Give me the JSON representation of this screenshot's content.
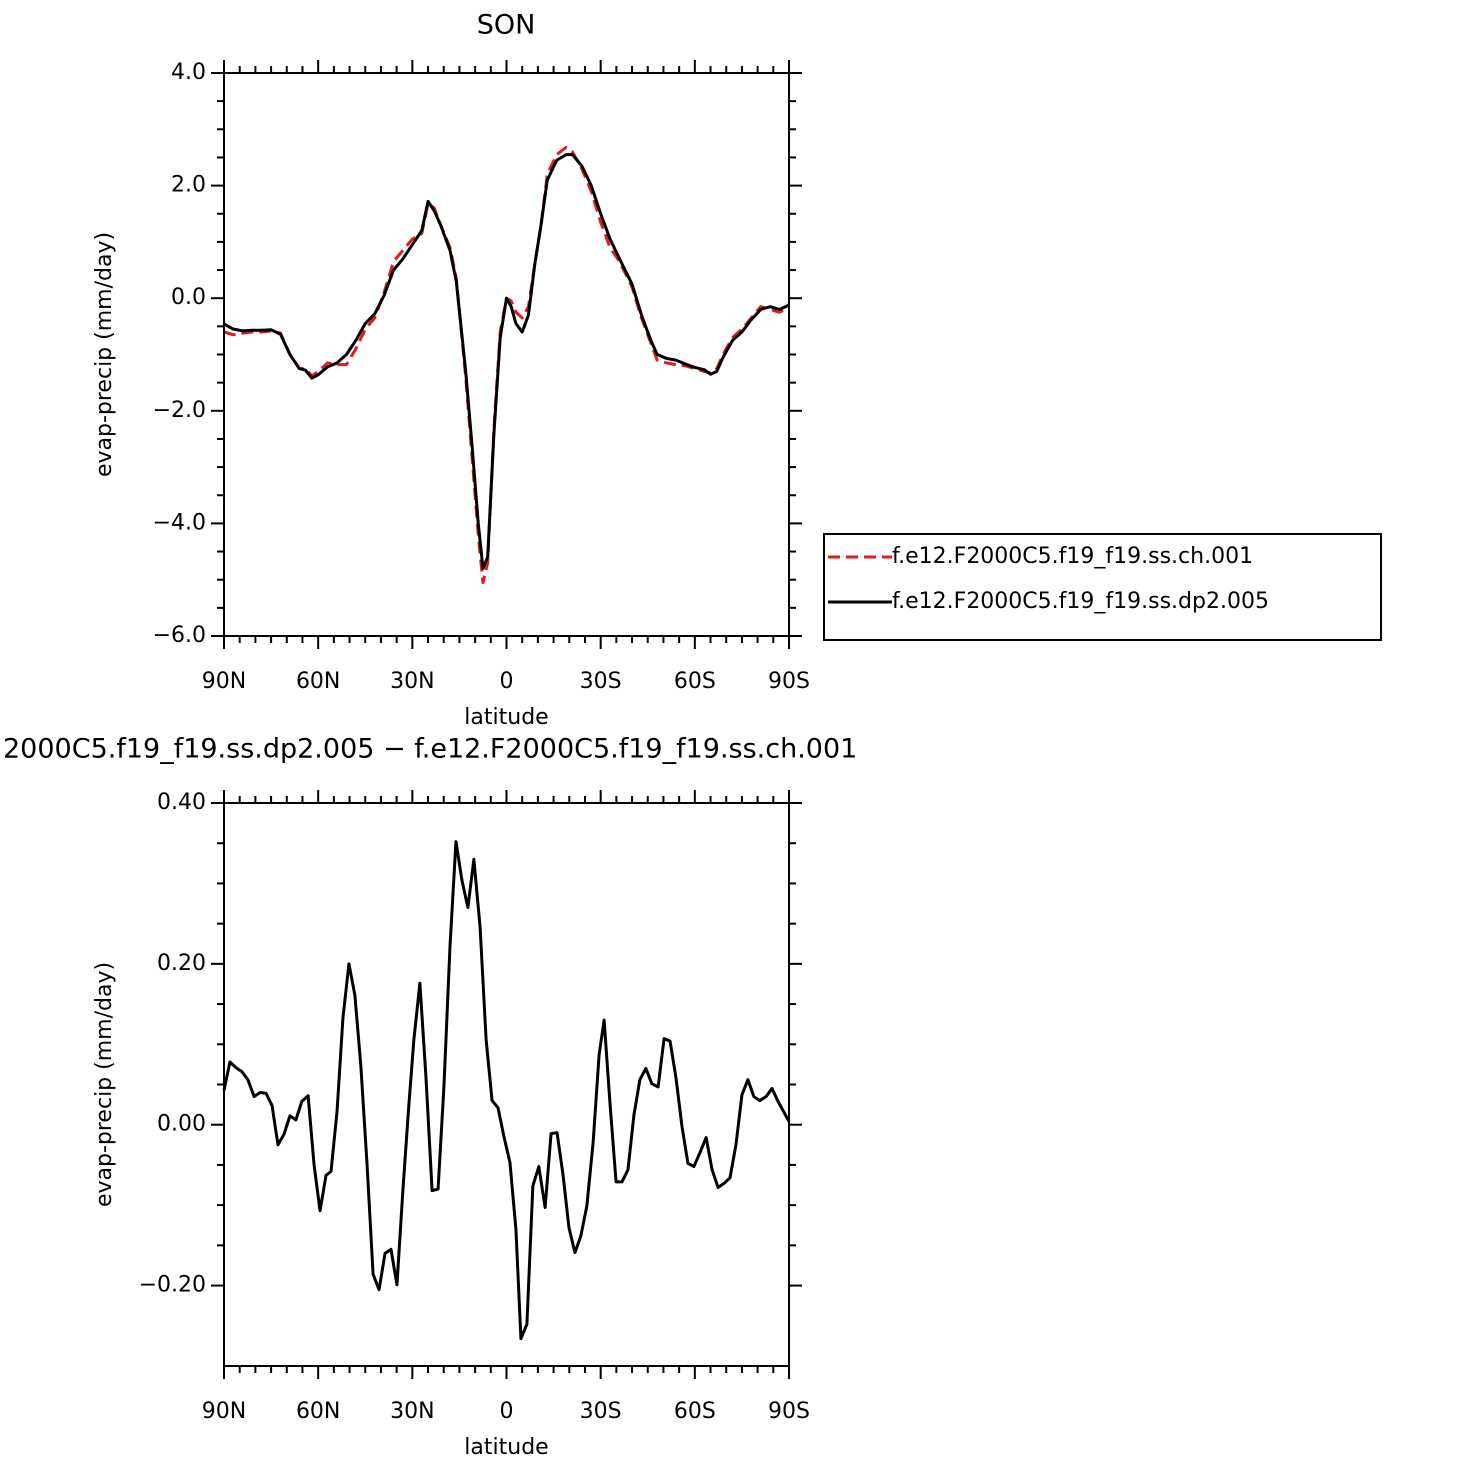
{
  "chart_data": [
    {
      "type": "line",
      "title": "SON",
      "ylabel": "evap-precip (mm/day)",
      "xlabel": "latitude",
      "x": [
        90,
        87,
        84,
        81,
        78,
        75,
        72,
        69,
        66,
        64,
        62,
        60,
        57,
        54,
        51,
        48,
        45,
        42,
        39,
        36,
        33,
        30,
        27,
        25,
        23,
        21,
        18,
        16,
        13,
        11,
        9,
        7.5,
        6,
        4,
        2,
        0,
        -1.5,
        -3,
        -5,
        -7,
        -9,
        -11,
        -13,
        -16,
        -19,
        -21,
        -24,
        -27,
        -30,
        -33,
        -36,
        -40,
        -43,
        -46,
        -48,
        -51,
        -54,
        -57,
        -60,
        -63,
        -65,
        -67,
        -69,
        -72,
        -75,
        -78,
        -81,
        -84,
        -87,
        -90
      ],
      "series": [
        {
          "name": "f.e12.F2000C5.f19_f19.ss.ch.001",
          "color": "#e41a1c",
          "style": "dashed",
          "values": [
            -0.6,
            -0.65,
            -0.62,
            -0.6,
            -0.6,
            -0.58,
            -0.62,
            -1.0,
            -1.25,
            -1.25,
            -1.38,
            -1.3,
            -1.15,
            -1.18,
            -1.18,
            -0.9,
            -0.55,
            -0.35,
            0.1,
            0.65,
            0.85,
            1.05,
            1.15,
            1.68,
            1.6,
            1.3,
            0.9,
            0.35,
            -1.4,
            -2.8,
            -4.2,
            -5.05,
            -4.7,
            -2.3,
            -0.6,
            0.0,
            -0.05,
            -0.25,
            -0.35,
            -0.15,
            0.6,
            1.3,
            2.2,
            2.55,
            2.68,
            2.6,
            2.3,
            1.9,
            1.35,
            0.9,
            0.65,
            0.2,
            -0.35,
            -0.8,
            -1.1,
            -1.15,
            -1.18,
            -1.2,
            -1.25,
            -1.3,
            -1.33,
            -1.25,
            -1.0,
            -0.7,
            -0.55,
            -0.35,
            -0.15,
            -0.2,
            -0.25,
            -0.15
          ]
        },
        {
          "name": "f.e12.F2000C5.f19_f19.ss.dp2.005",
          "color": "#000000",
          "style": "solid",
          "values": [
            -0.46,
            -0.55,
            -0.58,
            -0.57,
            -0.57,
            -0.56,
            -0.64,
            -1.0,
            -1.25,
            -1.28,
            -1.42,
            -1.36,
            -1.22,
            -1.15,
            -1.0,
            -0.75,
            -0.45,
            -0.28,
            0.05,
            0.5,
            0.7,
            0.95,
            1.2,
            1.72,
            1.55,
            1.3,
            0.85,
            0.3,
            -1.3,
            -2.6,
            -4.0,
            -4.8,
            -4.6,
            -2.4,
            -0.7,
            0.0,
            -0.15,
            -0.45,
            -0.6,
            -0.3,
            0.6,
            1.3,
            2.1,
            2.45,
            2.55,
            2.55,
            2.35,
            2.0,
            1.5,
            1.05,
            0.7,
            0.25,
            -0.3,
            -0.75,
            -1.0,
            -1.07,
            -1.1,
            -1.17,
            -1.23,
            -1.27,
            -1.35,
            -1.3,
            -1.05,
            -0.75,
            -0.6,
            -0.38,
            -0.2,
            -0.15,
            -0.2,
            -0.12
          ]
        }
      ],
      "xlim": [
        90,
        -90
      ],
      "xticks": [
        {
          "value": 90,
          "label": "90N"
        },
        {
          "value": 60,
          "label": "60N"
        },
        {
          "value": 30,
          "label": "30N"
        },
        0,
        {
          "value": -30,
          "label": "30S"
        },
        {
          "value": -60,
          "label": "60S"
        },
        {
          "value": -90,
          "label": "90S"
        }
      ],
      "ylim": [
        -6,
        4
      ],
      "yticks": [
        {
          "value": 4,
          "label": "4.0"
        },
        {
          "value": 2,
          "label": "2.0"
        },
        {
          "value": 0,
          "label": "0.0"
        },
        {
          "value": -2,
          "label": "−2.0"
        },
        {
          "value": -4,
          "label": "−4.0"
        },
        {
          "value": -6,
          "label": "−6.0"
        }
      ],
      "legend": "right"
    },
    {
      "type": "line",
      "title": "2000C5.f19_f19.ss.dp2.005 − f.e12.F2000C5.f19_f19.ss.ch.001",
      "ylabel": "evap-precip (mm/day)",
      "xlabel": "latitude",
      "x": [
        90,
        88.1,
        86.2,
        84.3,
        82.4,
        80.4,
        78.5,
        76.6,
        74.7,
        72.8,
        70.9,
        69.0,
        67.1,
        65.2,
        63.2,
        61.3,
        59.4,
        57.5,
        55.9,
        54.0,
        52.1,
        50.2,
        48.3,
        46.4,
        44.4,
        42.5,
        40.6,
        38.7,
        36.8,
        34.9,
        33.0,
        31.1,
        29.5,
        27.6,
        25.7,
        23.7,
        21.8,
        19.9,
        18.0,
        16.1,
        14.2,
        12.3,
        10.4,
        8.4,
        6.5,
        4.6,
        2.7,
        0.8,
        -1.1,
        -3.0,
        -4.6,
        -6.5,
        -8.4,
        -10.3,
        -12.3,
        -14.2,
        -16.1,
        -18.0,
        -19.9,
        -21.8,
        -23.7,
        -25.6,
        -27.6,
        -29.5,
        -31.1,
        -33.0,
        -34.9,
        -36.8,
        -38.7,
        -40.6,
        -42.5,
        -44.4,
        -46.3,
        -48.3,
        -50.2,
        -52.1,
        -54.0,
        -55.9,
        -57.8,
        -59.7,
        -61.6,
        -63.6,
        -65.5,
        -67.4,
        -69.3,
        -71.2,
        -73.1,
        -75.0,
        -76.9,
        -78.8,
        -80.7,
        -82.7,
        -84.6,
        -86.5,
        -90
      ],
      "series": [
        {
          "color": "#000000",
          "style": "solid",
          "values": [
            0.043,
            0.078,
            0.071,
            0.066,
            0.056,
            0.035,
            0.04,
            0.039,
            0.024,
            -0.025,
            -0.012,
            0.011,
            0.006,
            0.029,
            0.036,
            -0.05,
            -0.107,
            -0.063,
            -0.058,
            0.016,
            0.133,
            0.2,
            0.161,
            0.073,
            -0.051,
            -0.186,
            -0.205,
            -0.16,
            -0.155,
            -0.199,
            -0.081,
            0.025,
            0.106,
            0.176,
            0.062,
            -0.082,
            -0.08,
            0.05,
            0.222,
            0.352,
            0.304,
            0.27,
            0.33,
            0.245,
            0.106,
            0.03,
            0.021,
            -0.015,
            -0.047,
            -0.13,
            -0.266,
            -0.248,
            -0.076,
            -0.052,
            -0.103,
            -0.011,
            -0.01,
            -0.062,
            -0.128,
            -0.159,
            -0.138,
            -0.101,
            -0.022,
            0.087,
            0.13,
            0.025,
            -0.071,
            -0.071,
            -0.056,
            0.012,
            0.056,
            0.07,
            0.051,
            0.047,
            0.107,
            0.104,
            0.058,
            -0.002,
            -0.048,
            -0.052,
            -0.035,
            -0.016,
            -0.056,
            -0.078,
            -0.073,
            -0.066,
            -0.025,
            0.037,
            0.056,
            0.035,
            0.03,
            0.035,
            0.045,
            0.029,
            0.004
          ]
        }
      ],
      "xlim": [
        90,
        -90
      ],
      "xticks": [
        {
          "value": 90,
          "label": "90N"
        },
        {
          "value": 60,
          "label": "60N"
        },
        {
          "value": 30,
          "label": "30N"
        },
        0,
        {
          "value": -30,
          "label": "30S"
        },
        {
          "value": -60,
          "label": "60S"
        },
        {
          "value": -90,
          "label": "90S"
        }
      ],
      "ylim": [
        -0.3,
        0.4
      ],
      "yticks": [
        {
          "value": 0.4,
          "label": "0.40"
        },
        {
          "value": 0.2,
          "label": "0.20"
        },
        {
          "value": 0,
          "label": "0.00"
        },
        {
          "value": -0.2,
          "label": "−0.20"
        }
      ]
    }
  ]
}
